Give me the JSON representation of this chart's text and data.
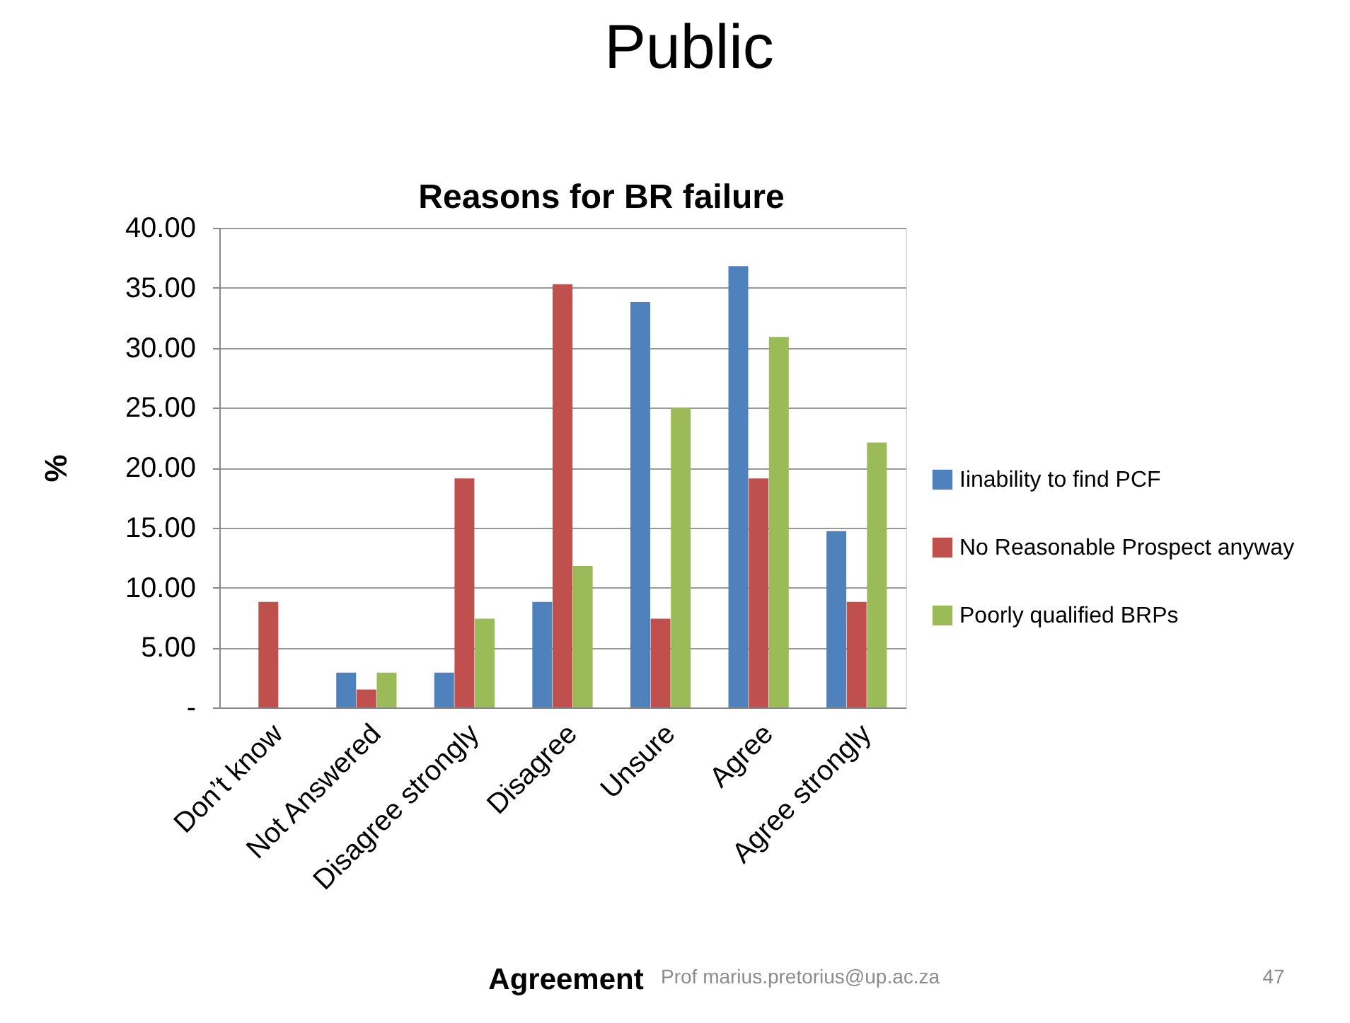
{
  "chart_data": {
    "type": "bar",
    "title": "Public",
    "subtitle": "Reasons for BR failure",
    "xlabel": "Agreement",
    "ylabel": "%",
    "categories": [
      "Don’t know",
      "Not Answered",
      "Disagree strongly",
      "Disagree",
      "Unsure",
      "Agree",
      "Agree strongly"
    ],
    "series": [
      {
        "name": "Iinability to find PCF",
        "color": "#4f81bd",
        "values": [
          0,
          2.9,
          2.9,
          8.8,
          33.8,
          36.8,
          14.7
        ]
      },
      {
        "name": "No Reasonable Prospect anyway",
        "color": "#c0504d",
        "values": [
          8.8,
          1.5,
          19.1,
          35.3,
          7.4,
          19.1,
          8.8
        ]
      },
      {
        "name": "Poorly qualified BRPs",
        "color": "#9bbb59",
        "values": [
          0,
          2.9,
          7.4,
          11.8,
          25.0,
          30.9,
          22.1
        ]
      }
    ],
    "ylim": [
      0,
      40
    ],
    "yticks": [
      {
        "value": 0,
        "label": "-"
      },
      {
        "value": 5,
        "label": "5.00"
      },
      {
        "value": 10,
        "label": "10.00"
      },
      {
        "value": 15,
        "label": "15.00"
      },
      {
        "value": 20,
        "label": "20.00"
      },
      {
        "value": 25,
        "label": "25.00"
      },
      {
        "value": 30,
        "label": "30.00"
      },
      {
        "value": 35,
        "label": "35.00"
      },
      {
        "value": 40,
        "label": "40.00"
      }
    ],
    "grid": "y",
    "legend": "right",
    "annotations": [
      "Prof marius.pretorius@up.ac.za",
      "47"
    ]
  }
}
